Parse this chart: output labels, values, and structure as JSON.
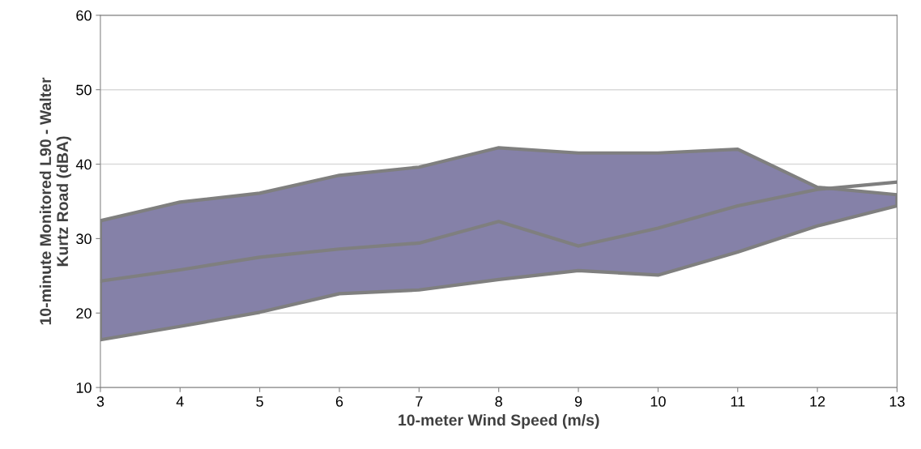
{
  "chart_data": {
    "type": "line",
    "xlabel": "10-meter Wind Speed (m/s)",
    "ylabel": "10-minute Monitored L90 - Walter\nKurtz Road (dBA)",
    "x": [
      3,
      4,
      5,
      6,
      7,
      8,
      9,
      10,
      11,
      12,
      13
    ],
    "series": [
      {
        "color": "#7f7f7f",
        "values": [
          24.3,
          25.8,
          27.5,
          28.6,
          29.4,
          32.3,
          29.0,
          31.4,
          34.4,
          36.6,
          37.6
        ],
        "lower": [
          16.4,
          18.2,
          20.1,
          22.6,
          23.1,
          24.5,
          25.7,
          25.1,
          28.2,
          31.7,
          34.4
        ],
        "upper": [
          32.4,
          34.9,
          36.1,
          38.5,
          39.6,
          42.2,
          41.5,
          41.5,
          42.0,
          36.9,
          35.9
        ]
      }
    ],
    "xlim": [
      3,
      13
    ],
    "xticks": [
      3,
      4,
      5,
      6,
      7,
      8,
      9,
      10,
      11,
      12,
      13
    ],
    "ylim": [
      10,
      60
    ],
    "yticks": [
      10,
      20,
      30,
      40,
      50,
      60
    ],
    "grid": "y",
    "legend": false
  }
}
